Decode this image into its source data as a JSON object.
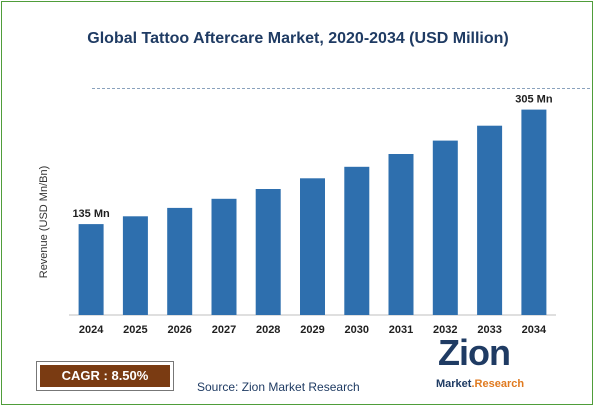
{
  "chart_data": {
    "type": "bar",
    "title": "Global Tattoo Aftercare Market, 2020-2034 (USD Million)",
    "ylabel": "Revenue (USD Mn/Bn)",
    "xlabel": "",
    "categories": [
      "2024",
      "2025",
      "2026",
      "2027",
      "2028",
      "2029",
      "2030",
      "2031",
      "2032",
      "2033",
      "2034"
    ],
    "values": [
      135,
      146.5,
      159,
      172.5,
      187,
      203,
      220,
      239,
      259,
      281,
      305
    ],
    "ylim": [
      0,
      340
    ],
    "data_labels": [
      {
        "index": 0,
        "text": "135 Mn"
      },
      {
        "index": 10,
        "text": "305 Mn"
      }
    ],
    "bar_color": "#2e6fae",
    "grid": false,
    "legend": "none"
  },
  "cagr": {
    "text": "CAGR : 8.50%",
    "color": "#7a3b12"
  },
  "source": "Source: Zion Market Research",
  "logo": {
    "word": "Zion",
    "sub_a": "Market",
    "sub_b": ".Research",
    "color_a": "#1f3b63",
    "color_b": "#e07a1f"
  },
  "accent": "#1f3b63"
}
